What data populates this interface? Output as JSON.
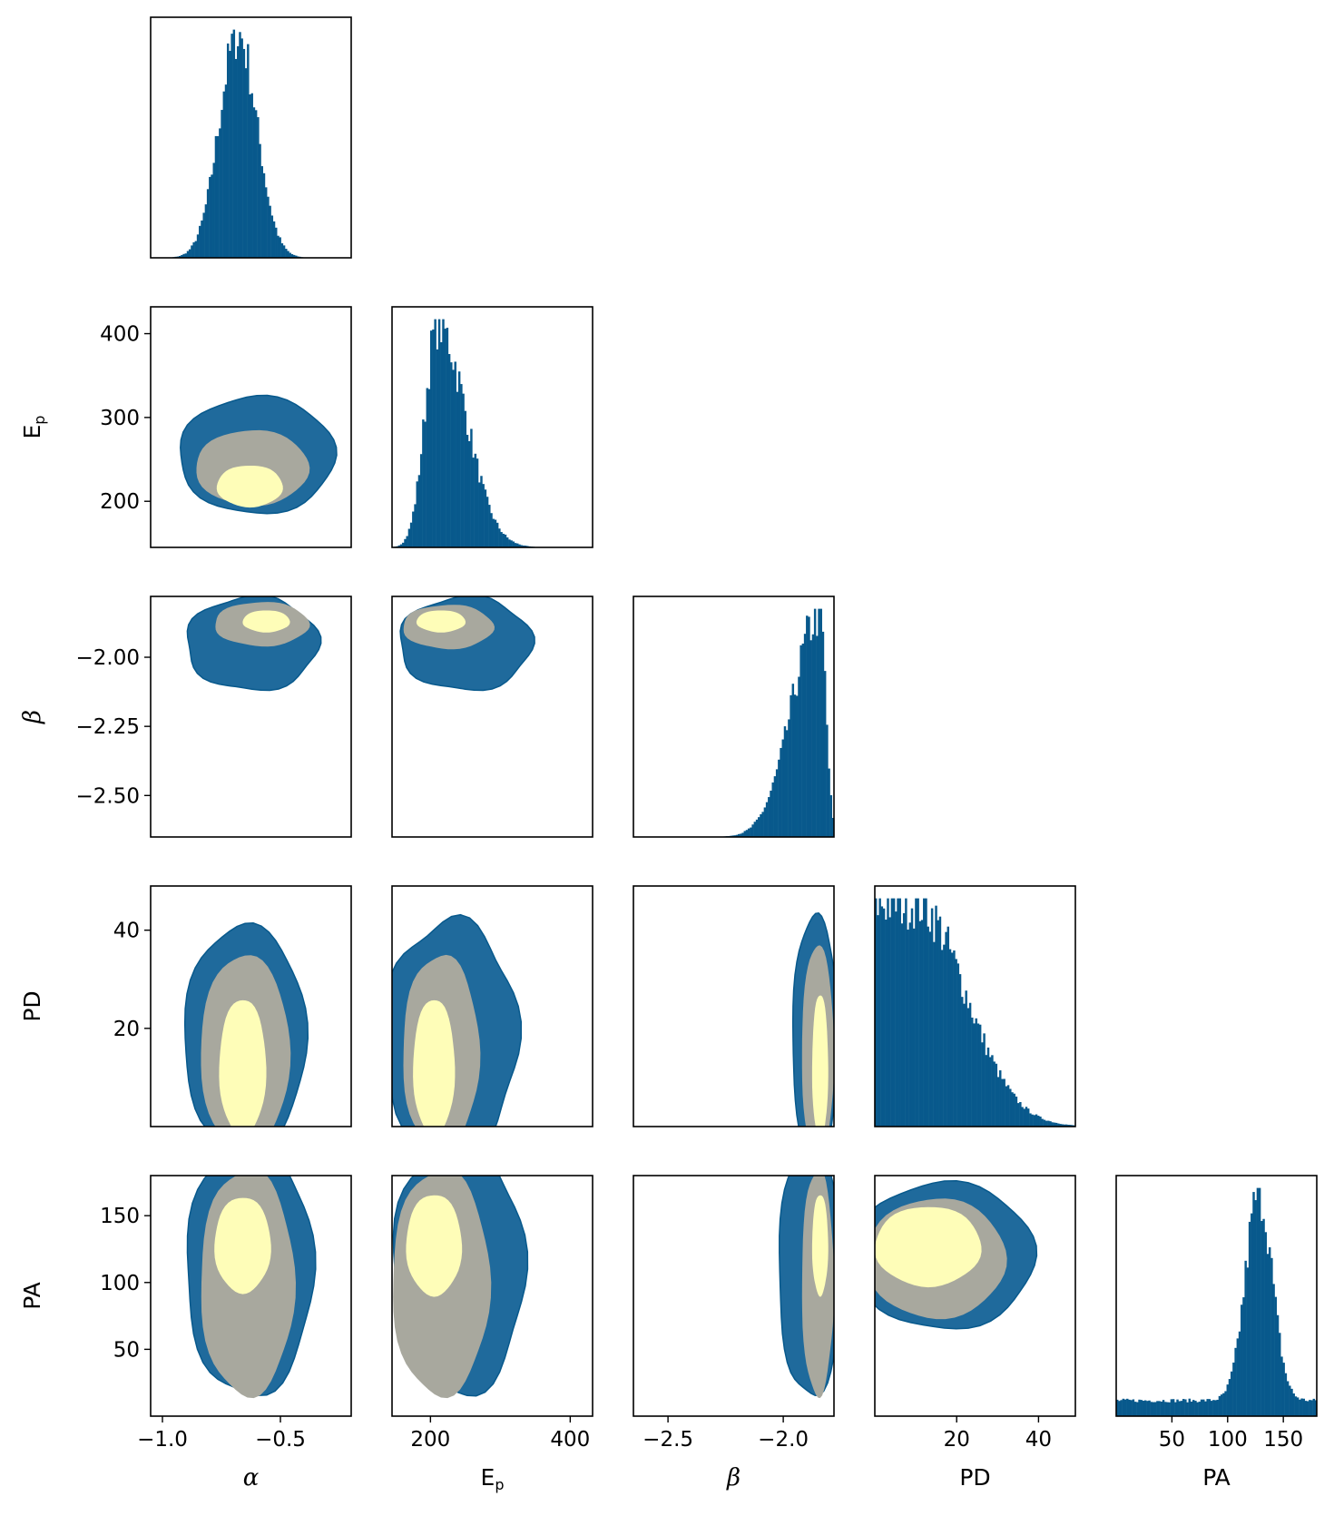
{
  "chart_data": {
    "type": "corner",
    "parameters": [
      {
        "key": "alpha",
        "label": "α",
        "italic": true,
        "sub": "",
        "ticks": [
          "−1.0",
          "−0.5"
        ],
        "tick_values": [
          -1.0,
          -0.5
        ],
        "range": [
          -1.05,
          -0.2
        ]
      },
      {
        "key": "Ep",
        "label": "E",
        "italic": false,
        "sub": "p",
        "ticks": [
          "200",
          "400"
        ],
        "tick_values": [
          200,
          400
        ],
        "range": [
          145,
          432
        ]
      },
      {
        "key": "beta",
        "label": "β",
        "italic": true,
        "sub": "",
        "ticks": [
          "−2.5",
          "−2.0"
        ],
        "tick_values": [
          -2.5,
          -2.0
        ],
        "range": [
          -2.65,
          -1.78
        ]
      },
      {
        "key": "PD",
        "label": "PD",
        "italic": false,
        "sub": "",
        "ticks": [
          "20",
          "40"
        ],
        "tick_values": [
          20,
          40
        ],
        "range": [
          0,
          49
        ]
      },
      {
        "key": "PA",
        "label": "PA",
        "italic": false,
        "sub": "",
        "ticks": [
          "50",
          "100",
          "150"
        ],
        "tick_values": [
          50,
          100,
          150
        ],
        "range": [
          0,
          180
        ]
      }
    ],
    "y_ticks": {
      "Ep": {
        "labels": [
          "400",
          "300",
          "200"
        ],
        "values": [
          400,
          300,
          200
        ]
      },
      "beta": {
        "labels": [
          "−2.00",
          "−2.25",
          "−2.50"
        ],
        "values": [
          -2.0,
          -2.25,
          -2.5
        ]
      },
      "PD": {
        "labels": [
          "40",
          "20"
        ],
        "values": [
          40,
          20
        ]
      },
      "PA": {
        "labels": [
          "150",
          "100",
          "50"
        ],
        "values": [
          150,
          100,
          50
        ]
      }
    },
    "histograms": {
      "alpha": {
        "shape": "gaussian",
        "mean": -0.68,
        "sd": 0.08
      },
      "Ep": {
        "shape": "skewed",
        "mode": 210,
        "sd_left": 18,
        "sd_right": 40
      },
      "beta": {
        "shape": "skewed",
        "mode": -1.84,
        "sd_left": 0.12,
        "sd_right": 0.025
      },
      "PD": {
        "shape": "halfnormal",
        "mode": 10,
        "sd": 12
      },
      "PA": {
        "shape": "peaked",
        "mode": 128,
        "sd": 12,
        "floor": 0.07
      }
    },
    "contour_levels": [
      "1-sigma",
      "2-sigma",
      "3-sigma"
    ],
    "colors": {
      "histogram": "#08598c",
      "outer_contour": "#1f6a9c",
      "middle_contour": "#a8a89e",
      "inner_contour": "#fefdb8",
      "frame": "#000000"
    }
  }
}
